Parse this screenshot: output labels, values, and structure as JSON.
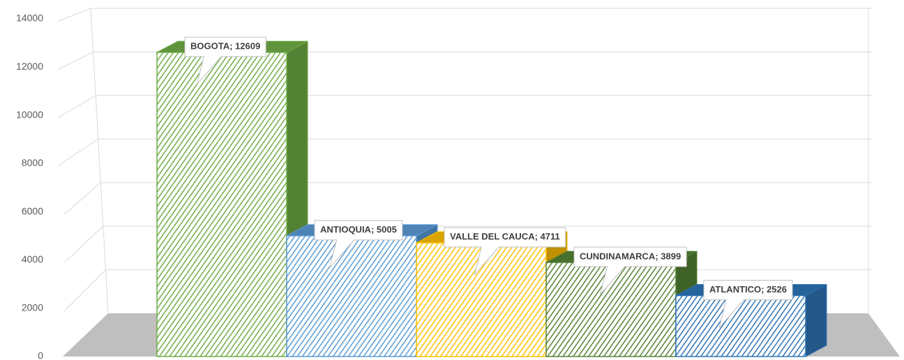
{
  "chart_data": {
    "type": "bar3d",
    "values": [
      12609,
      5005,
      4711,
      3899,
      2526
    ],
    "value_labels": [
      "BOGOTA; 12609",
      "ANTIOQUIA; 5005",
      "VALLE DEL CAUCA; 4711",
      "CUNDINAMARCA; 3899",
      "ATLANTICO; 2526"
    ],
    "colors": [
      "#70ad47",
      "#5b9bd5",
      "#ffc000",
      "#548235",
      "#2e75b6"
    ],
    "ylim": [
      0,
      14000
    ],
    "yticks": [
      0,
      2000,
      4000,
      6000,
      8000,
      10000,
      12000,
      14000
    ],
    "grid": true
  }
}
